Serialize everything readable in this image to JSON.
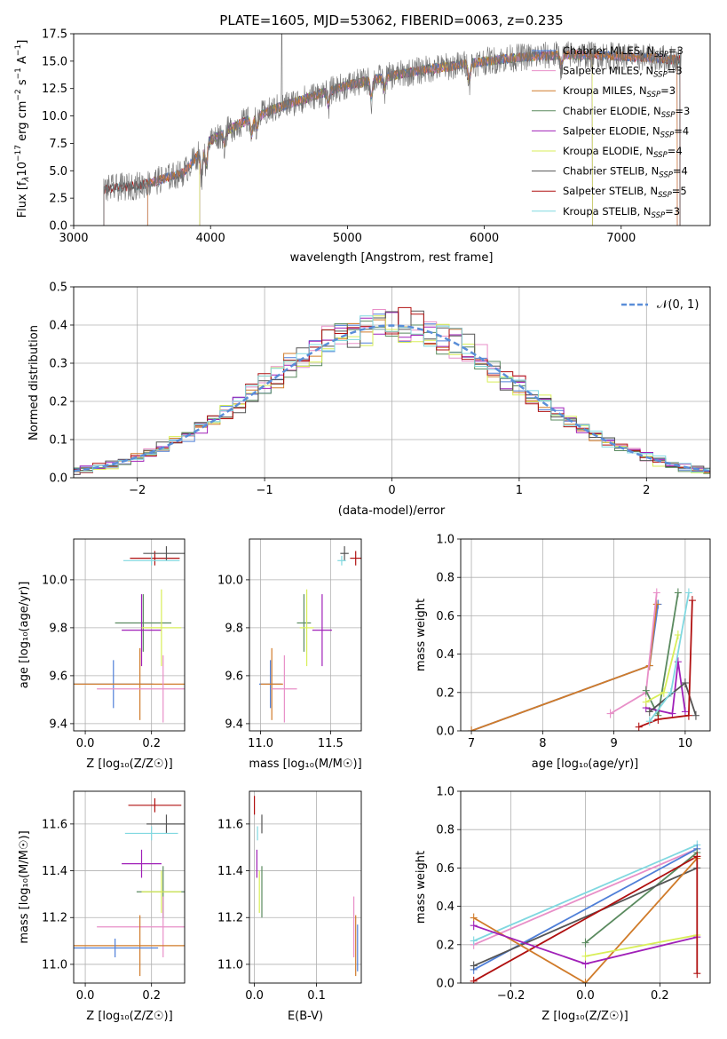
{
  "colors": {
    "chabrier_miles": "#4f7fd8",
    "salpeter_miles": "#e88fc8",
    "kroupa_miles": "#d07b2a",
    "chabrier_elodie": "#5a8a5f",
    "salpeter_elodie": "#a020b8",
    "kroupa_elodie": "#d8ee58",
    "chabrier_stelib": "#555555",
    "salpeter_stelib": "#b01010",
    "kroupa_stelib": "#80d8e0",
    "normal": "#5a8ed8",
    "grid": "#b0b0b0"
  },
  "chart_data": [
    {
      "id": "spectrum",
      "type": "line",
      "title": "PLATE=1605, MJD=53062, FIBERID=0063, z=0.235",
      "xlabel": "wavelength [Angstrom, rest frame]",
      "ylabel_parts": [
        "Flux [f",
        "λ",
        "10",
        "−17",
        " erg cm",
        "−2",
        " s",
        "−1",
        " A",
        "−1",
        "]"
      ],
      "xlim": [
        3000,
        7650
      ],
      "ylim": [
        0,
        17.5
      ],
      "xticks": [
        3000,
        4000,
        5000,
        6000,
        7000
      ],
      "yticks": [
        "0.0",
        "2.5",
        "5.0",
        "7.5",
        "10.0",
        "12.5",
        "15.0",
        "17.5"
      ],
      "grid": false,
      "legend_position": "top-right",
      "continuum_x": [
        3220,
        3500,
        3800,
        4000,
        4200,
        4500,
        4800,
        5000,
        5300,
        5600,
        5800,
        6000,
        6300,
        6600,
        6900,
        7200,
        7450
      ],
      "continuum_y": [
        3.3,
        3.7,
        4.8,
        7.8,
        9.2,
        10.8,
        12.0,
        12.8,
        13.6,
        14.3,
        14.6,
        15.0,
        15.4,
        15.6,
        15.5,
        15.3,
        15.1
      ],
      "series": [
        {
          "name": "Chabrier MILES",
          "nssp": "3",
          "color_key": "chabrier_miles",
          "start": 3540,
          "end": 7410
        },
        {
          "name": "Salpeter MILES",
          "nssp": "3",
          "color_key": "salpeter_miles",
          "start": 3540,
          "end": 7410
        },
        {
          "name": "Kroupa MILES",
          "nssp": "3",
          "color_key": "kroupa_miles",
          "start": 3540,
          "end": 7410
        },
        {
          "name": "Chabrier ELODIE",
          "nssp": "3",
          "color_key": "chabrier_elodie",
          "start": 3920,
          "end": 6790
        },
        {
          "name": "Salpeter ELODIE",
          "nssp": "4",
          "color_key": "salpeter_elodie",
          "start": 3920,
          "end": 6790
        },
        {
          "name": "Kroupa ELODIE",
          "nssp": "4",
          "color_key": "kroupa_elodie",
          "start": 3920,
          "end": 6790
        },
        {
          "name": "Chabrier STELIB",
          "nssp": "4",
          "color_key": "chabrier_stelib",
          "start": 3220,
          "end": 7430
        },
        {
          "name": "Salpeter STELIB",
          "nssp": "5",
          "color_key": "salpeter_stelib",
          "start": 3220,
          "end": 7430
        },
        {
          "name": "Kroupa STELIB",
          "nssp": "3",
          "color_key": "kroupa_stelib",
          "start": 3220,
          "end": 7430
        }
      ]
    },
    {
      "id": "residuals",
      "type": "histogram",
      "xlabel": "(data-model)/error",
      "ylabel": "Normed distribution",
      "xlim": [
        -2.5,
        2.5
      ],
      "ylim": [
        0,
        0.5
      ],
      "xticks": [
        -2,
        -1,
        0,
        1,
        2
      ],
      "xtick_labels": [
        "−2",
        "−1",
        "0",
        "1",
        "2"
      ],
      "yticks": [
        "0.0",
        "0.1",
        "0.2",
        "0.3",
        "0.4",
        "0.5"
      ],
      "grid": true,
      "bin_width": 0.1,
      "legend_position": "top-right",
      "legend_label": "𝒩(0, 1)"
    },
    {
      "id": "age_vs_Z",
      "type": "errorbar",
      "xlabel": "Z [log₁₀(Z/Z☉)]",
      "ylabel": "age  [log₁₀(age/yr)]",
      "xlim": [
        -0.035,
        0.3
      ],
      "ylim": [
        9.37,
        10.17
      ],
      "xticks": [
        "0.0",
        "0.2"
      ],
      "xtick_vals": [
        0.0,
        0.2
      ],
      "yticks": [
        "9.4",
        "9.6",
        "9.8",
        "10.0"
      ],
      "ytick_vals": [
        9.4,
        9.6,
        9.8,
        10.0
      ],
      "grid": true,
      "points": [
        {
          "color_key": "salpeter_stelib",
          "x": 0.21,
          "xerr": 0.075,
          "y": 10.09,
          "yerr": 0.03
        },
        {
          "color_key": "chabrier_stelib",
          "x": 0.245,
          "xerr": 0.07,
          "y": 10.11,
          "yerr": 0.03
        },
        {
          "color_key": "kroupa_stelib",
          "x": 0.2,
          "xerr": 0.085,
          "y": 10.08,
          "yerr": 0.02
        },
        {
          "color_key": "chabrier_elodie",
          "x": 0.175,
          "xerr": 0.085,
          "y": 9.82,
          "yerr": 0.12
        },
        {
          "color_key": "salpeter_elodie",
          "x": 0.17,
          "xerr": 0.06,
          "y": 9.79,
          "yerr": 0.15
        },
        {
          "color_key": "kroupa_elodie",
          "x": 0.23,
          "xerr": 0.06,
          "y": 9.8,
          "yerr": 0.16
        },
        {
          "color_key": "chabrier_miles",
          "x": 0.085,
          "xerr": 0.12,
          "y": 9.565,
          "yerr": 0.1
        },
        {
          "color_key": "kroupa_miles",
          "x": 0.165,
          "xerr": 0.2,
          "y": 9.565,
          "yerr": 0.15
        },
        {
          "color_key": "salpeter_miles",
          "x": 0.235,
          "xerr": 0.2,
          "y": 9.545,
          "yerr": 0.14
        }
      ]
    },
    {
      "id": "age_vs_mass",
      "type": "errorbar",
      "xlabel": "mass [log₁₀(M/M☉)]",
      "ylabel": "",
      "xlim": [
        10.92,
        11.72
      ],
      "ylim": [
        9.37,
        10.17
      ],
      "xticks": [
        "11.0",
        "11.5"
      ],
      "xtick_vals": [
        11.0,
        11.5
      ],
      "yticks": [
        "9.4",
        "9.6",
        "9.8",
        "10.0"
      ],
      "ytick_vals": [
        9.4,
        9.6,
        9.8,
        10.0
      ],
      "grid": true,
      "points": [
        {
          "color_key": "salpeter_stelib",
          "x": 11.68,
          "xerr": 0.04,
          "y": 10.09,
          "yerr": 0.03
        },
        {
          "color_key": "chabrier_stelib",
          "x": 11.6,
          "xerr": 0.03,
          "y": 10.11,
          "yerr": 0.03
        },
        {
          "color_key": "kroupa_stelib",
          "x": 11.58,
          "xerr": 0.03,
          "y": 10.08,
          "yerr": 0.02
        },
        {
          "color_key": "chabrier_elodie",
          "x": 11.31,
          "xerr": 0.05,
          "y": 9.82,
          "yerr": 0.12
        },
        {
          "color_key": "salpeter_elodie",
          "x": 11.44,
          "xerr": 0.07,
          "y": 9.79,
          "yerr": 0.15
        },
        {
          "color_key": "kroupa_elodie",
          "x": 11.33,
          "xerr": 0.05,
          "y": 9.8,
          "yerr": 0.16
        },
        {
          "color_key": "chabrier_miles",
          "x": 11.07,
          "xerr": 0.08,
          "y": 9.565,
          "yerr": 0.1
        },
        {
          "color_key": "kroupa_miles",
          "x": 11.08,
          "xerr": 0.08,
          "y": 9.565,
          "yerr": 0.15
        },
        {
          "color_key": "salpeter_miles",
          "x": 11.17,
          "xerr": 0.09,
          "y": 9.545,
          "yerr": 0.14
        }
      ]
    },
    {
      "id": "massweight_vs_age",
      "type": "line",
      "xlabel": "age  [log₁₀(age/yr)]",
      "ylabel": "mass weight",
      "xlim": [
        6.85,
        10.35
      ],
      "ylim": [
        0,
        1.0
      ],
      "xticks": [
        "7",
        "8",
        "9",
        "10"
      ],
      "xtick_vals": [
        7,
        8,
        9,
        10
      ],
      "yticks": [
        "0.0",
        "0.2",
        "0.4",
        "0.6",
        "0.8",
        "1.0"
      ],
      "ytick_vals": [
        0,
        0.2,
        0.4,
        0.6,
        0.8,
        1.0
      ],
      "grid": true,
      "series": [
        {
          "color_key": "chabrier_miles",
          "x": [
            7.0,
            9.5,
            9.62
          ],
          "y": [
            0.0,
            0.34,
            0.66
          ]
        },
        {
          "color_key": "kroupa_miles",
          "x": [
            7.0,
            9.5,
            9.6
          ],
          "y": [
            0.0,
            0.34,
            0.66
          ]
        },
        {
          "color_key": "salpeter_miles",
          "x": [
            8.95,
            9.45,
            9.6
          ],
          "y": [
            0.09,
            0.2,
            0.72
          ]
        },
        {
          "color_key": "chabrier_elodie",
          "x": [
            9.45,
            9.62,
            9.9
          ],
          "y": [
            0.21,
            0.08,
            0.72
          ]
        },
        {
          "color_key": "salpeter_elodie",
          "x": [
            9.45,
            9.82,
            9.9,
            10.0
          ],
          "y": [
            0.12,
            0.09,
            0.36,
            0.1
          ]
        },
        {
          "color_key": "kroupa_elodie",
          "x": [
            9.45,
            9.7,
            9.9
          ],
          "y": [
            0.15,
            0.2,
            0.5
          ]
        },
        {
          "color_key": "chabrier_stelib",
          "x": [
            9.5,
            10.0,
            10.15
          ],
          "y": [
            0.1,
            0.25,
            0.08
          ]
        },
        {
          "color_key": "salpeter_stelib",
          "x": [
            9.35,
            9.62,
            10.05,
            10.1
          ],
          "y": [
            0.02,
            0.06,
            0.08,
            0.68
          ]
        },
        {
          "color_key": "kroupa_stelib",
          "x": [
            9.5,
            9.8,
            10.05
          ],
          "y": [
            0.05,
            0.2,
            0.72
          ]
        }
      ]
    },
    {
      "id": "mass_vs_Z",
      "type": "errorbar",
      "xlabel": "Z [log₁₀(Z/Z☉)]",
      "ylabel": "mass [log₁₀(M/M☉)]",
      "xlim": [
        -0.035,
        0.3
      ],
      "ylim": [
        10.92,
        11.74
      ],
      "xticks": [
        "0.0",
        "0.2"
      ],
      "xtick_vals": [
        0.0,
        0.2
      ],
      "yticks": [
        "11.0",
        "11.2",
        "11.4",
        "11.6"
      ],
      "ytick_vals": [
        11.0,
        11.2,
        11.4,
        11.6
      ],
      "grid": true,
      "points": [
        {
          "color_key": "salpeter_stelib",
          "x": 0.21,
          "xerr": 0.08,
          "y": 11.68,
          "yerr": 0.03
        },
        {
          "color_key": "chabrier_stelib",
          "x": 0.245,
          "xerr": 0.06,
          "y": 11.6,
          "yerr": 0.04
        },
        {
          "color_key": "kroupa_stelib",
          "x": 0.2,
          "xerr": 0.08,
          "y": 11.56,
          "yerr": 0.03
        },
        {
          "color_key": "salpeter_elodie",
          "x": 0.17,
          "xerr": 0.06,
          "y": 11.43,
          "yerr": 0.06
        },
        {
          "color_key": "chabrier_elodie",
          "x": 0.235,
          "xerr": 0.08,
          "y": 11.31,
          "yerr": 0.11
        },
        {
          "color_key": "kroupa_elodie",
          "x": 0.23,
          "xerr": 0.06,
          "y": 11.31,
          "yerr": 0.09
        },
        {
          "color_key": "salpeter_miles",
          "x": 0.235,
          "xerr": 0.2,
          "y": 11.16,
          "yerr": 0.13
        },
        {
          "color_key": "kroupa_miles",
          "x": 0.165,
          "xerr": 0.2,
          "y": 11.08,
          "yerr": 0.13
        },
        {
          "color_key": "chabrier_miles",
          "x": 0.09,
          "xerr": 0.13,
          "y": 11.07,
          "yerr": 0.04
        }
      ]
    },
    {
      "id": "mass_vs_ebv",
      "type": "errorbar",
      "xlabel": "E(B-V)",
      "ylabel": "",
      "xlim": [
        -0.008,
        0.172
      ],
      "ylim": [
        10.92,
        11.74
      ],
      "xticks": [
        "0.0",
        "0.1"
      ],
      "xtick_vals": [
        0.0,
        0.1
      ],
      "yticks": [
        "11.0",
        "11.2",
        "11.4",
        "11.6"
      ],
      "ytick_vals": [
        11.0,
        11.2,
        11.4,
        11.6
      ],
      "grid": true,
      "points": [
        {
          "color_key": "salpeter_stelib",
          "x": 0.0,
          "xerr": 0,
          "y": 11.68,
          "yerr": 0.04
        },
        {
          "color_key": "chabrier_stelib",
          "x": 0.012,
          "xerr": 0,
          "y": 11.6,
          "yerr": 0.04
        },
        {
          "color_key": "kroupa_stelib",
          "x": 0.005,
          "xerr": 0,
          "y": 11.56,
          "yerr": 0.03
        },
        {
          "color_key": "salpeter_elodie",
          "x": 0.004,
          "xerr": 0,
          "y": 11.43,
          "yerr": 0.06
        },
        {
          "color_key": "chabrier_elodie",
          "x": 0.012,
          "xerr": 0,
          "y": 11.31,
          "yerr": 0.11
        },
        {
          "color_key": "kroupa_elodie",
          "x": 0.008,
          "xerr": 0,
          "y": 11.31,
          "yerr": 0.09
        },
        {
          "color_key": "salpeter_miles",
          "x": 0.16,
          "xerr": 0,
          "y": 11.16,
          "yerr": 0.13
        },
        {
          "color_key": "kroupa_miles",
          "x": 0.163,
          "xerr": 0,
          "y": 11.08,
          "yerr": 0.13
        },
        {
          "color_key": "chabrier_miles",
          "x": 0.166,
          "xerr": 0,
          "y": 11.07,
          "yerr": 0.1
        }
      ]
    },
    {
      "id": "massweight_vs_Z",
      "type": "line",
      "xlabel": "Z [log₁₀(Z/Z☉)]",
      "ylabel": "mass weight",
      "xlim": [
        -0.335,
        0.335
      ],
      "ylim": [
        0,
        1.0
      ],
      "xticks": [
        "−0.2",
        "0.0",
        "0.2"
      ],
      "xtick_vals": [
        -0.2,
        0.0,
        0.2
      ],
      "yticks": [
        "0.0",
        "0.2",
        "0.4",
        "0.6",
        "0.8",
        "1.0"
      ],
      "ytick_vals": [
        0,
        0.2,
        0.4,
        0.6,
        0.8,
        1.0
      ],
      "grid": true,
      "series": [
        {
          "color_key": "salpeter_miles",
          "x": [
            -0.3,
            0.3
          ],
          "y": [
            0.2,
            0.7
          ]
        },
        {
          "color_key": "kroupa_stelib",
          "x": [
            -0.3,
            0.3
          ],
          "y": [
            0.22,
            0.72
          ]
        },
        {
          "color_key": "chabrier_miles",
          "x": [
            -0.3,
            0.3
          ],
          "y": [
            0.07,
            0.7
          ]
        },
        {
          "color_key": "chabrier_elodie",
          "x": [
            0.0,
            0.3
          ],
          "y": [
            0.21,
            0.68
          ]
        },
        {
          "color_key": "chabrier_stelib",
          "x": [
            -0.3,
            0.3
          ],
          "y": [
            0.09,
            0.6
          ]
        },
        {
          "color_key": "salpeter_stelib",
          "x": [
            -0.3,
            0.3
          ],
          "y": [
            0.01,
            0.66
          ]
        },
        {
          "color_key": "kroupa_miles",
          "x": [
            -0.3,
            0.0,
            0.3
          ],
          "y": [
            0.34,
            0.0,
            0.65
          ]
        },
        {
          "color_key": "salpeter_elodie",
          "x": [
            -0.3,
            0.0,
            0.3
          ],
          "y": [
            0.3,
            0.1,
            0.24
          ]
        },
        {
          "color_key": "kroupa_elodie",
          "x": [
            0.0,
            0.3
          ],
          "y": [
            0.14,
            0.25
          ]
        },
        {
          "color_key": "salpeter_stelib",
          "x": [
            0.3,
            0.3
          ],
          "y": [
            0.66,
            0.05
          ]
        }
      ]
    }
  ]
}
